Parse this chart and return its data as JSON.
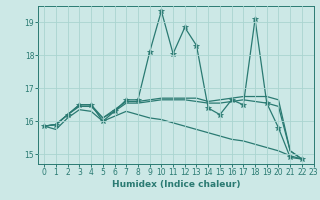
{
  "title": "",
  "xlabel": "Humidex (Indice chaleur)",
  "background_color": "#cce8e6",
  "grid_color": "#aad4d0",
  "line_color": "#2a7a72",
  "xlim": [
    -0.5,
    23
  ],
  "ylim": [
    14.7,
    19.5
  ],
  "yticks": [
    15,
    16,
    17,
    18,
    19
  ],
  "xticks": [
    0,
    1,
    2,
    3,
    4,
    5,
    6,
    7,
    8,
    9,
    10,
    11,
    12,
    13,
    14,
    15,
    16,
    17,
    18,
    19,
    20,
    21,
    22,
    23
  ],
  "series": [
    [
      15.85,
      15.9,
      16.2,
      16.5,
      16.5,
      16.0,
      16.3,
      16.65,
      16.65,
      18.1,
      19.35,
      18.05,
      18.85,
      18.3,
      16.4,
      16.2,
      16.65,
      16.5,
      19.1,
      16.55,
      15.8,
      14.9,
      14.85
    ],
    [
      15.85,
      15.9,
      16.2,
      16.5,
      16.5,
      16.1,
      16.35,
      16.6,
      16.6,
      16.65,
      16.7,
      16.7,
      16.7,
      16.7,
      16.6,
      16.65,
      16.7,
      16.75,
      16.75,
      16.75,
      16.65,
      15.1,
      14.85
    ],
    [
      15.85,
      15.9,
      16.2,
      16.45,
      16.45,
      16.1,
      16.3,
      16.55,
      16.55,
      16.6,
      16.65,
      16.65,
      16.65,
      16.6,
      16.55,
      16.55,
      16.6,
      16.65,
      16.6,
      16.55,
      16.45,
      15.1,
      14.85
    ],
    [
      15.85,
      15.75,
      16.1,
      16.35,
      16.3,
      16.0,
      16.15,
      16.3,
      16.2,
      16.1,
      16.05,
      15.95,
      15.85,
      15.75,
      15.65,
      15.55,
      15.45,
      15.4,
      15.3,
      15.2,
      15.1,
      14.95,
      14.85
    ]
  ],
  "series_styles": [
    {
      "marker": "*",
      "linestyle": "-",
      "linewidth": 0.9,
      "markersize": 4.0
    },
    {
      "marker": "None",
      "linestyle": "-",
      "linewidth": 0.9,
      "markersize": 0
    },
    {
      "marker": "None",
      "linestyle": "-",
      "linewidth": 0.9,
      "markersize": 0
    },
    {
      "marker": "None",
      "linestyle": "-",
      "linewidth": 0.9,
      "markersize": 0
    }
  ]
}
